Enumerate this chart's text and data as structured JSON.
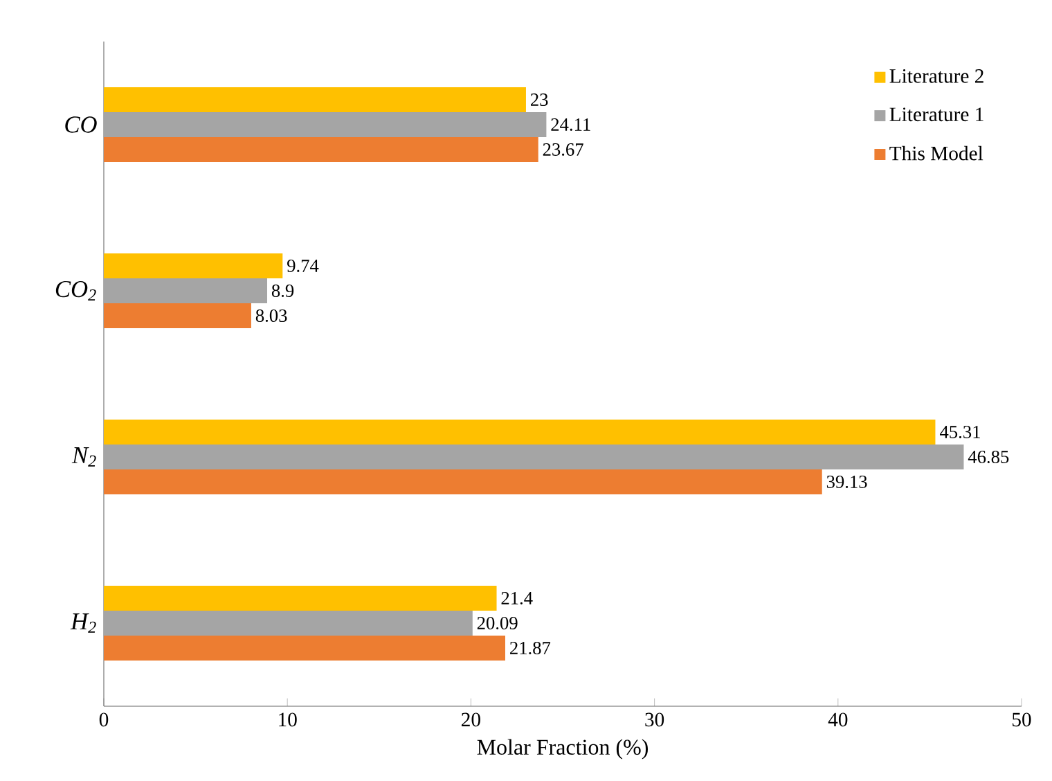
{
  "chart_data": {
    "type": "bar",
    "orientation": "horizontal",
    "xlabel": "Molar Fraction (%)",
    "categories": [
      "CO",
      "CO$_{2}$",
      "N$_{2}$",
      "H$_{2}$"
    ],
    "series": [
      {
        "name": "Literature 2",
        "color": "#ffc000",
        "values": [
          23,
          9.74,
          45.31,
          21.4
        ]
      },
      {
        "name": "Literature 1",
        "color": "#a5a5a5",
        "values": [
          24.11,
          8.9,
          46.85,
          20.09
        ]
      },
      {
        "name": "This Model",
        "color": "#ed7d31",
        "values": [
          23.67,
          8.03,
          39.13,
          21.87
        ]
      }
    ],
    "xlim": [
      0,
      50
    ],
    "xticks": [
      0,
      10,
      20,
      30,
      40,
      50
    ],
    "data_labels": true,
    "legend": "top right",
    "grid": false
  }
}
